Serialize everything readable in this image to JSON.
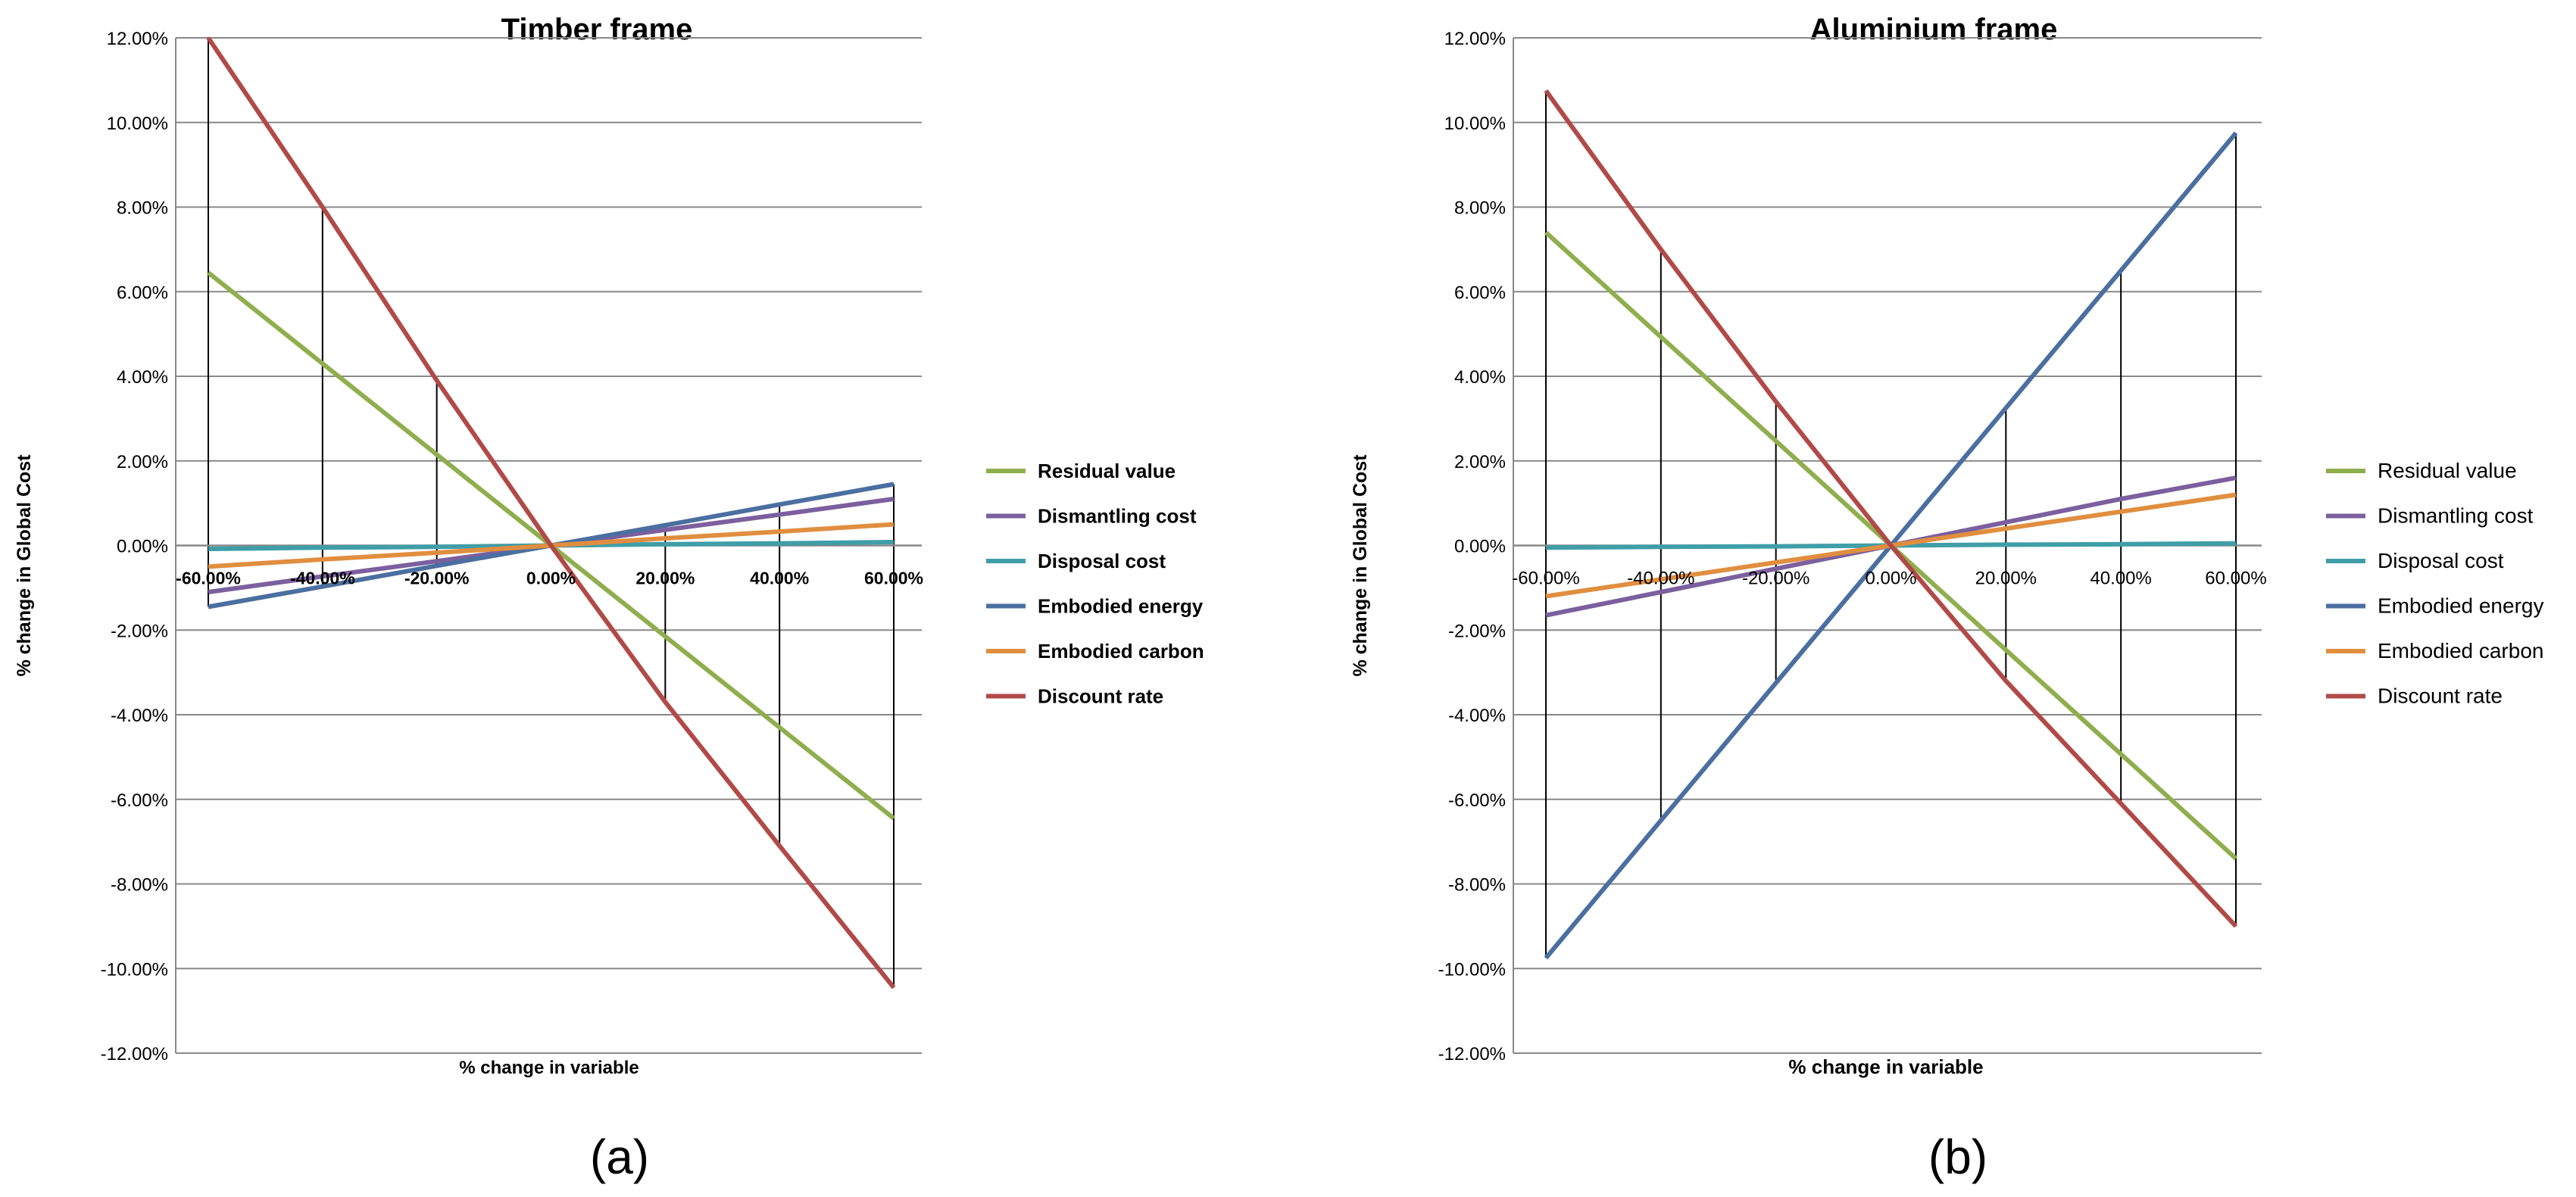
{
  "panel_captions": [
    "(a)",
    "(b)"
  ],
  "colors": {
    "Residual value": "#8FAE4E",
    "Dismantling cost": "#7B5F9E",
    "Disposal cost": "#3F9EA8",
    "Embodied energy": "#4A6FA0",
    "Embodied carbon": "#E08E3F",
    "Discount rate": "#B14A47",
    "gridline": "#888888",
    "axis": "#888888",
    "dropline": "#000000",
    "text": "#000000"
  },
  "chart_data": [
    {
      "type": "line",
      "title": "Timber frame",
      "xlabel": "% change in variable",
      "ylabel": "% change in Global Cost",
      "x": [
        -60,
        -40,
        -20,
        0,
        20,
        40,
        60
      ],
      "x_tick_labels": [
        "-60.00%",
        "-40.00%",
        "-20.00%",
        "0.00%",
        "20.00%",
        "40.00%",
        "60.00%"
      ],
      "ylim": [
        -12,
        12
      ],
      "y_ticks": [
        12,
        10,
        8,
        6,
        4,
        2,
        0,
        -2,
        -4,
        -6,
        -8,
        -10,
        -12
      ],
      "y_tick_labels": [
        "12.00%",
        "10.00%",
        "8.00%",
        "6.00%",
        "4.00%",
        "2.00%",
        "0.00%",
        "-2.00%",
        "-4.00%",
        "-6.00%",
        "-8.00%",
        "-10.00%",
        "-12.00%"
      ],
      "grid": true,
      "high_low_lines": true,
      "legend_position": "right",
      "series": [
        {
          "name": "Residual value",
          "values": [
            6.45,
            4.3,
            2.15,
            0,
            -2.15,
            -4.3,
            -6.45
          ]
        },
        {
          "name": "Dismantling cost",
          "values": [
            -1.1,
            -0.73,
            -0.37,
            0,
            0.37,
            0.73,
            1.1
          ]
        },
        {
          "name": "Disposal cost",
          "values": [
            -0.08,
            -0.05,
            -0.03,
            0,
            0.03,
            0.05,
            0.08
          ]
        },
        {
          "name": "Embodied energy",
          "values": [
            -1.45,
            -0.97,
            -0.48,
            0,
            0.48,
            0.97,
            1.45
          ]
        },
        {
          "name": "Embodied carbon",
          "values": [
            -0.5,
            -0.33,
            -0.17,
            0,
            0.17,
            0.33,
            0.5
          ]
        },
        {
          "name": "Discount rate",
          "values": [
            12.2,
            8.0,
            3.9,
            0,
            -3.7,
            -7.1,
            -10.45
          ]
        }
      ]
    },
    {
      "type": "line",
      "title": "Aluminium frame",
      "xlabel": "% change in variable",
      "ylabel": "% change in Global Cost",
      "x": [
        -60,
        -40,
        -20,
        0,
        20,
        40,
        60
      ],
      "x_tick_labels": [
        "-60.00%",
        "-40.00%",
        "-20.00%",
        "0.00%",
        "20.00%",
        "40.00%",
        "60.00%"
      ],
      "ylim": [
        -12,
        12
      ],
      "y_ticks": [
        12,
        10,
        8,
        6,
        4,
        2,
        0,
        -2,
        -4,
        -6,
        -8,
        -10,
        -12
      ],
      "y_tick_labels": [
        "12.00%",
        "10.00%",
        "8.00%",
        "6.00%",
        "4.00%",
        "2.00%",
        "0.00%",
        "-2.00%",
        "-4.00%",
        "-6.00%",
        "-8.00%",
        "-10.00%",
        "-12.00%"
      ],
      "grid": true,
      "high_low_lines": true,
      "legend_position": "right",
      "series": [
        {
          "name": "Residual value",
          "values": [
            7.4,
            4.93,
            2.47,
            0,
            -2.47,
            -4.93,
            -7.4
          ]
        },
        {
          "name": "Dismantling cost",
          "values": [
            -1.65,
            -1.1,
            -0.55,
            0,
            0.55,
            1.1,
            1.6
          ]
        },
        {
          "name": "Disposal cost",
          "values": [
            -0.05,
            -0.03,
            -0.02,
            0,
            0.02,
            0.03,
            0.05
          ]
        },
        {
          "name": "Embodied energy",
          "values": [
            -9.75,
            -6.5,
            -3.25,
            0,
            3.25,
            6.5,
            9.75
          ]
        },
        {
          "name": "Embodied carbon",
          "values": [
            -1.2,
            -0.8,
            -0.4,
            0,
            0.4,
            0.8,
            1.2
          ]
        },
        {
          "name": "Discount rate",
          "values": [
            10.75,
            7.0,
            3.4,
            0,
            -3.2,
            -6.1,
            -9.0
          ]
        }
      ]
    }
  ]
}
